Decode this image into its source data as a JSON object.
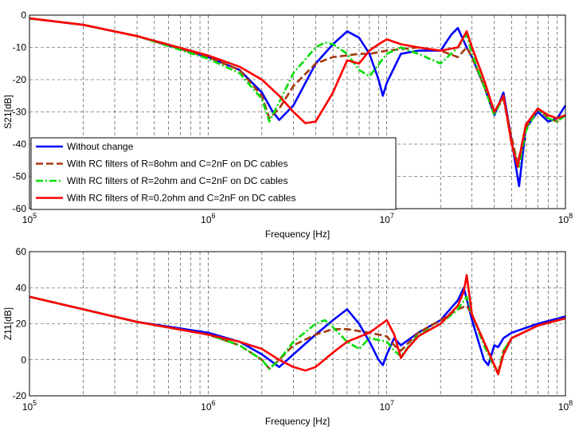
{
  "chart_data": [
    {
      "type": "line",
      "xlabel": "Frequency [Hz]",
      "ylabel": "S21[dB]",
      "xscale": "log",
      "xlim": [
        100000,
        100000000
      ],
      "ylim": [
        -60,
        0
      ],
      "xticks": [
        {
          "base": "10",
          "exp": "5"
        },
        {
          "base": "10",
          "exp": "6"
        },
        {
          "base": "10",
          "exp": "7"
        },
        {
          "base": "10",
          "exp": "8"
        }
      ],
      "yticks": [
        "0",
        "-10",
        "-20",
        "-30",
        "-40",
        "-50",
        "-60"
      ],
      "grid": true,
      "legend_position": "bottom-left",
      "series": [
        {
          "name": "Without change",
          "color": "#0000ff",
          "dash": "solid",
          "x": [
            100000,
            200000,
            400000,
            1000000,
            1500000,
            2000000,
            2300000,
            2500000,
            3000000,
            4000000,
            5000000,
            6000000,
            7000000,
            8000000,
            9000000,
            9500000,
            10000000,
            12000000,
            15000000,
            20000000,
            23000000,
            25000000,
            28000000,
            30000000,
            35000000,
            40000000,
            45000000,
            50000000,
            55000000,
            60000000,
            70000000,
            80000000,
            90000000,
            100000000
          ],
          "y": [
            -1,
            -3,
            -6.5,
            -13,
            -17,
            -24,
            -30,
            -32.5,
            -28,
            -15,
            -9,
            -5,
            -7,
            -12,
            -20,
            -25,
            -21,
            -12,
            -11,
            -11,
            -6,
            -4,
            -10,
            -13,
            -22,
            -31,
            -24,
            -39,
            -53,
            -35,
            -30,
            -33,
            -32,
            -28
          ]
        },
        {
          "name": "With RC filters of R=8ohm and C=2nF on DC cables",
          "color": "#a5380f",
          "dash": "dashed",
          "x": [
            100000,
            200000,
            400000,
            1000000,
            1500000,
            2000000,
            2200000,
            2500000,
            3000000,
            4000000,
            5000000,
            6000000,
            7000000,
            8000000,
            10000000,
            15000000,
            20000000,
            25000000,
            28000000,
            30000000,
            35000000,
            40000000,
            45000000,
            50000000,
            54000000,
            60000000,
            70000000,
            80000000,
            90000000,
            100000000
          ],
          "y": [
            -1,
            -3,
            -6.5,
            -13,
            -17,
            -25,
            -32,
            -29,
            -22,
            -15,
            -13,
            -12.5,
            -12,
            -12,
            -11,
            -10,
            -11,
            -13,
            -10,
            -13,
            -22,
            -30,
            -26,
            -38,
            -46,
            -35,
            -29,
            -32,
            -33,
            -31
          ]
        },
        {
          "name": "With RC filters of R=2ohm and C=2nF on DC cables",
          "color": "#00dd00",
          "dash": "dashdot",
          "x": [
            100000,
            200000,
            400000,
            1000000,
            1500000,
            2000000,
            2200000,
            2500000,
            3000000,
            4000000,
            4500000,
            5000000,
            6000000,
            7000000,
            8000000,
            10000000,
            12000000,
            15000000,
            20000000,
            25000000,
            28000000,
            30000000,
            35000000,
            40000000,
            45000000,
            50000000,
            55000000,
            60000000,
            70000000,
            80000000,
            90000000,
            100000000
          ],
          "y": [
            -1,
            -3,
            -6.5,
            -13.5,
            -18,
            -26,
            -33,
            -27,
            -18,
            -10,
            -8.5,
            -9,
            -12,
            -17,
            -19,
            -12,
            -10,
            -12,
            -15,
            -10,
            -6,
            -12,
            -22,
            -31,
            -25,
            -40,
            -47,
            -36,
            -29,
            -32,
            -33,
            -31
          ]
        },
        {
          "name": "With RC filters of R=0.2ohm and C=2nF on DC cables",
          "color": "#ff0000",
          "dash": "solid",
          "x": [
            100000,
            200000,
            400000,
            1000000,
            1500000,
            2000000,
            2500000,
            3000000,
            3500000,
            4000000,
            5000000,
            6000000,
            7000000,
            8000000,
            9000000,
            10000000,
            12000000,
            15000000,
            20000000,
            25000000,
            28000000,
            30000000,
            35000000,
            40000000,
            45000000,
            50000000,
            54000000,
            60000000,
            70000000,
            80000000,
            90000000,
            100000000
          ],
          "y": [
            -1,
            -3,
            -6.5,
            -12.5,
            -16,
            -20,
            -25,
            -30,
            -33.5,
            -33,
            -24,
            -14,
            -15,
            -11,
            -9,
            -7.5,
            -9,
            -10,
            -11,
            -10,
            -5,
            -10,
            -20,
            -30,
            -25,
            -40,
            -47,
            -34,
            -29,
            -31,
            -32,
            -31
          ]
        }
      ]
    },
    {
      "type": "line",
      "xlabel": "Frequency [Hz]",
      "ylabel": "Z11[dB]",
      "xscale": "log",
      "xlim": [
        100000,
        100000000
      ],
      "ylim": [
        -20,
        60
      ],
      "xticks": [
        {
          "base": "10",
          "exp": "5"
        },
        {
          "base": "10",
          "exp": "6"
        },
        {
          "base": "10",
          "exp": "7"
        },
        {
          "base": "10",
          "exp": "8"
        }
      ],
      "yticks": [
        "60",
        "40",
        "20",
        "0",
        "-20"
      ],
      "grid": true,
      "series": [
        {
          "name": "Without change",
          "color": "#0000ff",
          "dash": "solid",
          "x": [
            100000,
            200000,
            400000,
            1000000,
            1500000,
            2000000,
            2500000,
            3000000,
            4000000,
            5000000,
            6000000,
            7000000,
            8000000,
            9000000,
            9500000,
            10000000,
            11000000,
            12000000,
            15000000,
            20000000,
            25000000,
            27000000,
            30000000,
            35000000,
            37000000,
            40000000,
            42000000,
            45000000,
            50000000,
            70000000,
            100000000
          ],
          "y": [
            35,
            28,
            21,
            15,
            10,
            3,
            -4,
            3,
            14,
            22,
            28,
            20,
            10,
            0,
            -3,
            3,
            12,
            8,
            15,
            22,
            33,
            40,
            22,
            0,
            -3,
            8,
            7,
            12,
            15,
            20,
            24
          ]
        },
        {
          "name": "With RC filters of R=8ohm and C=2nF on DC cables",
          "color": "#a5380f",
          "dash": "dashed",
          "x": [
            100000,
            200000,
            400000,
            1000000,
            1500000,
            2000000,
            2200000,
            2500000,
            3000000,
            4000000,
            5000000,
            6000000,
            8000000,
            10000000,
            11000000,
            12000000,
            15000000,
            20000000,
            25000000,
            28000000,
            30000000,
            35000000,
            40000000,
            42000000,
            45000000,
            50000000,
            70000000,
            100000000
          ],
          "y": [
            35,
            28,
            21,
            14,
            8,
            0,
            -5,
            0,
            8,
            14,
            17,
            17,
            15,
            13,
            8,
            5,
            15,
            22,
            28,
            30,
            25,
            10,
            -3,
            -7,
            5,
            12,
            19,
            23
          ]
        },
        {
          "name": "With RC filters of R=2ohm and C=2nF on DC cables",
          "color": "#00dd00",
          "dash": "dashdot",
          "x": [
            100000,
            200000,
            400000,
            1000000,
            1500000,
            2000000,
            2200000,
            2500000,
            3000000,
            4000000,
            4500000,
            5000000,
            6000000,
            7000000,
            8000000,
            10000000,
            11000000,
            12000000,
            15000000,
            20000000,
            25000000,
            28000000,
            30000000,
            35000000,
            40000000,
            42000000,
            45000000,
            50000000,
            70000000,
            100000000
          ],
          "y": [
            35,
            28,
            21,
            14,
            8,
            0,
            -5,
            0,
            10,
            20,
            22,
            18,
            10,
            6,
            12,
            10,
            5,
            2,
            14,
            20,
            28,
            35,
            25,
            8,
            -4,
            -7,
            5,
            12,
            19,
            23
          ]
        },
        {
          "name": "With RC filters of R=0.2ohm and C=2nF on DC cables",
          "color": "#ff0000",
          "dash": "solid",
          "x": [
            100000,
            200000,
            400000,
            1000000,
            1500000,
            2000000,
            2500000,
            3000000,
            3500000,
            4000000,
            5000000,
            6000000,
            8000000,
            10000000,
            11000000,
            12000000,
            13000000,
            15000000,
            20000000,
            25000000,
            27000000,
            28000000,
            30000000,
            35000000,
            40000000,
            42000000,
            45000000,
            50000000,
            70000000,
            100000000
          ],
          "y": [
            35,
            28,
            21,
            14,
            10,
            6,
            0,
            -4,
            -6,
            -4,
            4,
            10,
            15,
            22,
            14,
            1,
            6,
            13,
            20,
            30,
            38,
            47,
            25,
            10,
            -3,
            -8,
            3,
            12,
            19,
            23
          ]
        }
      ]
    }
  ]
}
